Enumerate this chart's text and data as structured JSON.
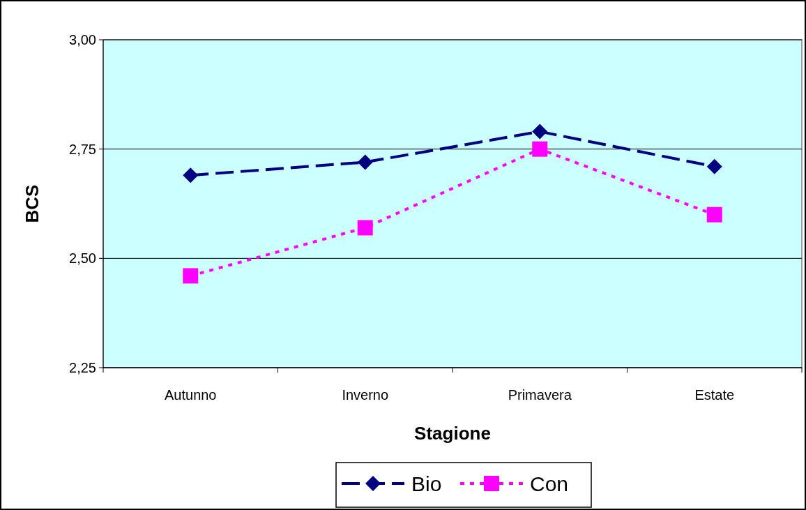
{
  "chart_data": {
    "type": "line",
    "xlabel": "Stagione",
    "ylabel": "BCS",
    "categories": [
      "Autunno",
      "Inverno",
      "Primavera",
      "Estate"
    ],
    "series": [
      {
        "name": "Bio",
        "color": "#000080",
        "values": [
          2.69,
          2.72,
          2.79,
          2.71
        ],
        "marker": "diamond",
        "line_style": "dashed"
      },
      {
        "name": "Con",
        "color": "#ff00ff",
        "values": [
          2.46,
          2.57,
          2.75,
          2.6
        ],
        "marker": "square",
        "line_style": "dotted"
      }
    ],
    "ylim": [
      2.25,
      3
    ],
    "yticks": [
      {
        "value": 2.25,
        "label": "2,25"
      },
      {
        "value": 2.5,
        "label": "2,50"
      },
      {
        "value": 2.75,
        "label": "2,75"
      },
      {
        "value": 3,
        "label": "3,00"
      }
    ],
    "grid": "y",
    "legend": "bottom"
  }
}
